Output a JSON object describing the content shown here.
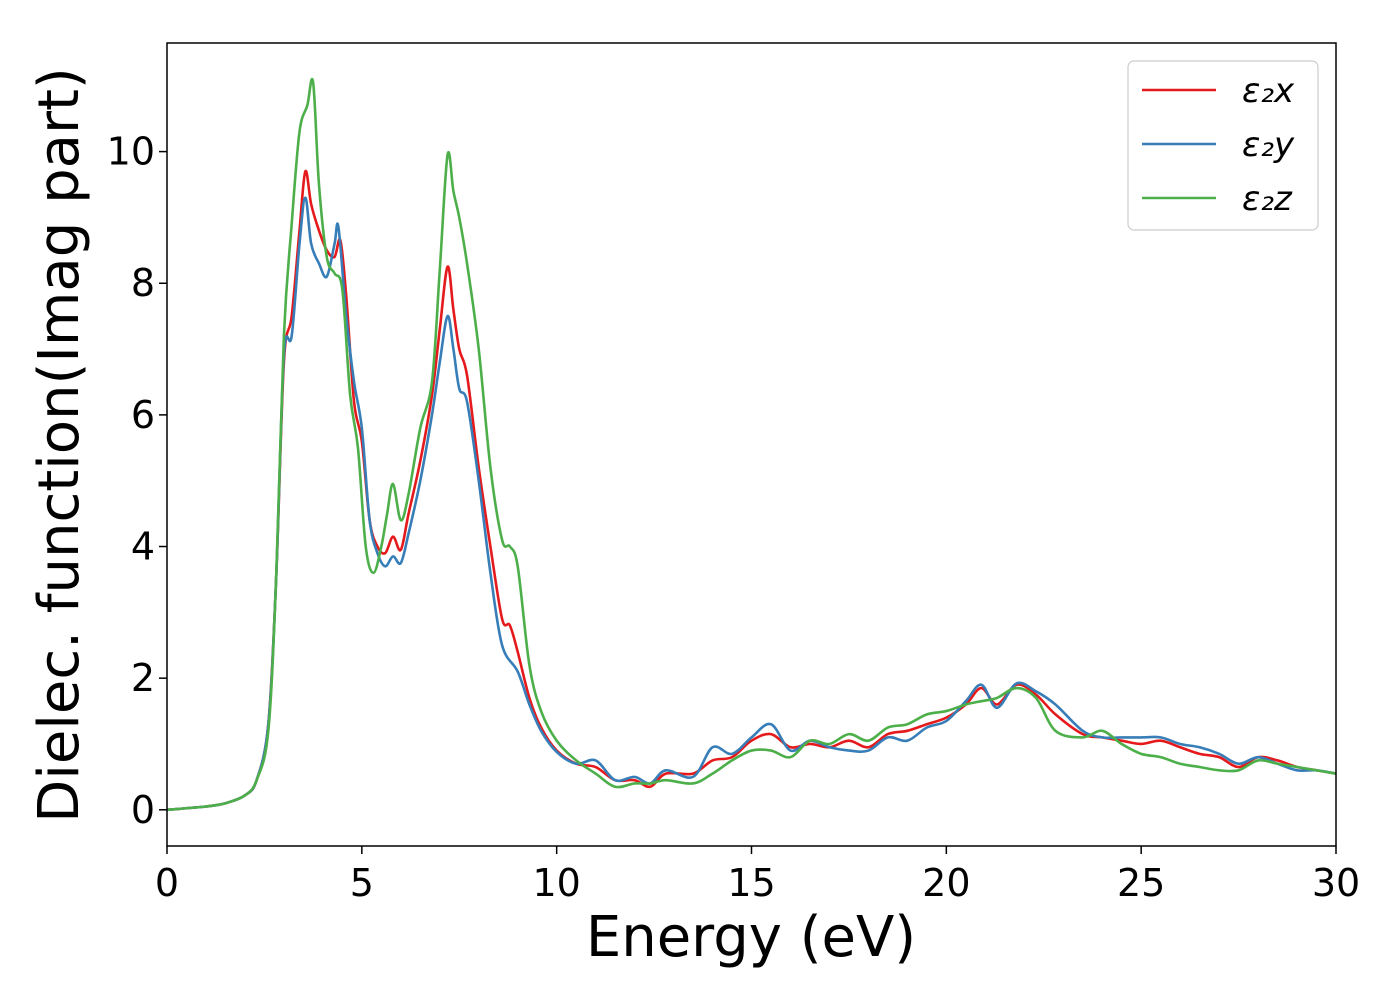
{
  "chart_data": {
    "type": "line",
    "title": "",
    "xlabel": "Energy (eV)",
    "ylabel": "Dielec. function(Imag part)",
    "xlim": [
      0,
      30
    ],
    "ylim": [
      -0.55,
      11.65
    ],
    "xticks": [
      0,
      5,
      10,
      15,
      20,
      25,
      30
    ],
    "yticks": [
      0,
      2,
      4,
      6,
      8,
      10
    ],
    "grid": false,
    "legend_position": "top-right",
    "series": [
      {
        "name": "ε₂x",
        "color": "#e41a1c",
        "points": [
          [
            0,
            0
          ],
          [
            1,
            0.05
          ],
          [
            1.5,
            0.1
          ],
          [
            2,
            0.22
          ],
          [
            2.3,
            0.45
          ],
          [
            2.6,
            1.3
          ],
          [
            2.8,
            3.5
          ],
          [
            3.0,
            6.8
          ],
          [
            3.2,
            7.5
          ],
          [
            3.4,
            8.8
          ],
          [
            3.55,
            9.7
          ],
          [
            3.7,
            9.2
          ],
          [
            3.9,
            8.8
          ],
          [
            4.1,
            8.5
          ],
          [
            4.3,
            8.4
          ],
          [
            4.45,
            8.65
          ],
          [
            4.6,
            7.8
          ],
          [
            4.8,
            6.2
          ],
          [
            5.0,
            5.6
          ],
          [
            5.2,
            4.4
          ],
          [
            5.4,
            4.0
          ],
          [
            5.6,
            3.9
          ],
          [
            5.8,
            4.15
          ],
          [
            6.0,
            3.95
          ],
          [
            6.2,
            4.5
          ],
          [
            6.5,
            5.3
          ],
          [
            6.8,
            6.3
          ],
          [
            7.0,
            7.3
          ],
          [
            7.2,
            8.25
          ],
          [
            7.35,
            7.6
          ],
          [
            7.5,
            7.0
          ],
          [
            7.7,
            6.6
          ],
          [
            8.0,
            5.2
          ],
          [
            8.3,
            4.0
          ],
          [
            8.6,
            2.9
          ],
          [
            8.8,
            2.8
          ],
          [
            9.0,
            2.4
          ],
          [
            9.3,
            1.7
          ],
          [
            9.6,
            1.25
          ],
          [
            10,
            0.9
          ],
          [
            10.5,
            0.7
          ],
          [
            11,
            0.65
          ],
          [
            11.5,
            0.45
          ],
          [
            12,
            0.45
          ],
          [
            12.4,
            0.35
          ],
          [
            12.8,
            0.55
          ],
          [
            13.5,
            0.55
          ],
          [
            14,
            0.75
          ],
          [
            14.5,
            0.8
          ],
          [
            15,
            1.05
          ],
          [
            15.5,
            1.15
          ],
          [
            16,
            0.95
          ],
          [
            16.5,
            1.0
          ],
          [
            17,
            0.95
          ],
          [
            17.5,
            1.05
          ],
          [
            18,
            0.95
          ],
          [
            18.5,
            1.15
          ],
          [
            19,
            1.2
          ],
          [
            19.5,
            1.3
          ],
          [
            20,
            1.4
          ],
          [
            20.5,
            1.6
          ],
          [
            20.9,
            1.85
          ],
          [
            21.3,
            1.6
          ],
          [
            21.8,
            1.9
          ],
          [
            22.3,
            1.75
          ],
          [
            22.8,
            1.45
          ],
          [
            23.5,
            1.15
          ],
          [
            24,
            1.1
          ],
          [
            24.5,
            1.05
          ],
          [
            25,
            1.0
          ],
          [
            25.5,
            1.05
          ],
          [
            26,
            0.95
          ],
          [
            26.5,
            0.85
          ],
          [
            27,
            0.8
          ],
          [
            27.5,
            0.65
          ],
          [
            28,
            0.8
          ],
          [
            28.5,
            0.75
          ],
          [
            29,
            0.65
          ],
          [
            29.5,
            0.6
          ],
          [
            30,
            0.55
          ]
        ]
      },
      {
        "name": "ε₂y",
        "color": "#377eb8",
        "points": [
          [
            0,
            0
          ],
          [
            1,
            0.05
          ],
          [
            1.5,
            0.1
          ],
          [
            2,
            0.22
          ],
          [
            2.3,
            0.45
          ],
          [
            2.6,
            1.3
          ],
          [
            2.8,
            3.5
          ],
          [
            3.0,
            6.9
          ],
          [
            3.2,
            7.2
          ],
          [
            3.4,
            8.6
          ],
          [
            3.55,
            9.3
          ],
          [
            3.7,
            8.6
          ],
          [
            3.9,
            8.3
          ],
          [
            4.1,
            8.1
          ],
          [
            4.3,
            8.6
          ],
          [
            4.4,
            8.85
          ],
          [
            4.6,
            7.5
          ],
          [
            4.8,
            6.5
          ],
          [
            5.0,
            5.8
          ],
          [
            5.2,
            4.4
          ],
          [
            5.4,
            3.9
          ],
          [
            5.6,
            3.7
          ],
          [
            5.8,
            3.85
          ],
          [
            6.0,
            3.75
          ],
          [
            6.2,
            4.2
          ],
          [
            6.5,
            5.0
          ],
          [
            6.8,
            6.0
          ],
          [
            7.0,
            6.8
          ],
          [
            7.2,
            7.5
          ],
          [
            7.35,
            7.0
          ],
          [
            7.5,
            6.4
          ],
          [
            7.7,
            6.2
          ],
          [
            8.0,
            5.0
          ],
          [
            8.3,
            3.6
          ],
          [
            8.6,
            2.5
          ],
          [
            9.0,
            2.1
          ],
          [
            9.3,
            1.6
          ],
          [
            9.6,
            1.2
          ],
          [
            10,
            0.88
          ],
          [
            10.5,
            0.7
          ],
          [
            11,
            0.75
          ],
          [
            11.5,
            0.45
          ],
          [
            12,
            0.5
          ],
          [
            12.4,
            0.4
          ],
          [
            12.8,
            0.6
          ],
          [
            13.5,
            0.5
          ],
          [
            14,
            0.95
          ],
          [
            14.5,
            0.85
          ],
          [
            15,
            1.1
          ],
          [
            15.5,
            1.3
          ],
          [
            16,
            0.9
          ],
          [
            16.5,
            1.05
          ],
          [
            17,
            0.95
          ],
          [
            17.5,
            0.9
          ],
          [
            18,
            0.9
          ],
          [
            18.5,
            1.1
          ],
          [
            19,
            1.05
          ],
          [
            19.5,
            1.25
          ],
          [
            20,
            1.35
          ],
          [
            20.5,
            1.65
          ],
          [
            20.9,
            1.9
          ],
          [
            21.3,
            1.55
          ],
          [
            21.8,
            1.92
          ],
          [
            22.3,
            1.8
          ],
          [
            22.8,
            1.6
          ],
          [
            23.5,
            1.2
          ],
          [
            24,
            1.1
          ],
          [
            24.5,
            1.1
          ],
          [
            25,
            1.1
          ],
          [
            25.5,
            1.1
          ],
          [
            26,
            1.0
          ],
          [
            26.5,
            0.95
          ],
          [
            27,
            0.85
          ],
          [
            27.5,
            0.7
          ],
          [
            28,
            0.8
          ],
          [
            28.5,
            0.7
          ],
          [
            29,
            0.6
          ],
          [
            29.5,
            0.6
          ],
          [
            30,
            0.55
          ]
        ]
      },
      {
        "name": "ε₂z",
        "color": "#4daf4a",
        "points": [
          [
            0,
            0
          ],
          [
            1,
            0.05
          ],
          [
            1.5,
            0.1
          ],
          [
            2,
            0.22
          ],
          [
            2.3,
            0.45
          ],
          [
            2.6,
            1.2
          ],
          [
            2.8,
            3.5
          ],
          [
            3.0,
            7.2
          ],
          [
            3.2,
            8.9
          ],
          [
            3.4,
            10.3
          ],
          [
            3.6,
            10.7
          ],
          [
            3.75,
            11.05
          ],
          [
            3.9,
            9.5
          ],
          [
            4.1,
            8.4
          ],
          [
            4.3,
            8.15
          ],
          [
            4.5,
            7.9
          ],
          [
            4.7,
            6.3
          ],
          [
            4.9,
            5.5
          ],
          [
            5.1,
            4.0
          ],
          [
            5.3,
            3.6
          ],
          [
            5.5,
            4.0
          ],
          [
            5.65,
            4.5
          ],
          [
            5.8,
            4.95
          ],
          [
            6.0,
            4.4
          ],
          [
            6.2,
            4.8
          ],
          [
            6.5,
            5.8
          ],
          [
            6.8,
            6.5
          ],
          [
            7.0,
            8.2
          ],
          [
            7.2,
            9.95
          ],
          [
            7.35,
            9.4
          ],
          [
            7.5,
            9.0
          ],
          [
            7.7,
            8.3
          ],
          [
            8.0,
            7.0
          ],
          [
            8.3,
            5.2
          ],
          [
            8.6,
            4.1
          ],
          [
            8.8,
            4.0
          ],
          [
            9.0,
            3.7
          ],
          [
            9.3,
            2.2
          ],
          [
            9.6,
            1.5
          ],
          [
            10,
            1.05
          ],
          [
            10.5,
            0.75
          ],
          [
            11,
            0.55
          ],
          [
            11.5,
            0.35
          ],
          [
            12,
            0.4
          ],
          [
            12.4,
            0.4
          ],
          [
            12.8,
            0.45
          ],
          [
            13.5,
            0.4
          ],
          [
            14,
            0.55
          ],
          [
            14.5,
            0.75
          ],
          [
            15,
            0.9
          ],
          [
            15.5,
            0.9
          ],
          [
            16,
            0.8
          ],
          [
            16.5,
            1.05
          ],
          [
            17,
            1.0
          ],
          [
            17.5,
            1.15
          ],
          [
            18,
            1.05
          ],
          [
            18.5,
            1.25
          ],
          [
            19,
            1.3
          ],
          [
            19.5,
            1.45
          ],
          [
            20,
            1.5
          ],
          [
            20.5,
            1.6
          ],
          [
            20.9,
            1.65
          ],
          [
            21.3,
            1.7
          ],
          [
            21.8,
            1.85
          ],
          [
            22.3,
            1.7
          ],
          [
            22.8,
            1.2
          ],
          [
            23.5,
            1.1
          ],
          [
            24,
            1.2
          ],
          [
            24.5,
            1.0
          ],
          [
            25,
            0.85
          ],
          [
            25.5,
            0.8
          ],
          [
            26,
            0.7
          ],
          [
            26.5,
            0.65
          ],
          [
            27,
            0.6
          ],
          [
            27.5,
            0.6
          ],
          [
            28,
            0.75
          ],
          [
            28.5,
            0.7
          ],
          [
            29,
            0.65
          ],
          [
            29.5,
            0.6
          ],
          [
            30,
            0.55
          ]
        ]
      }
    ]
  }
}
